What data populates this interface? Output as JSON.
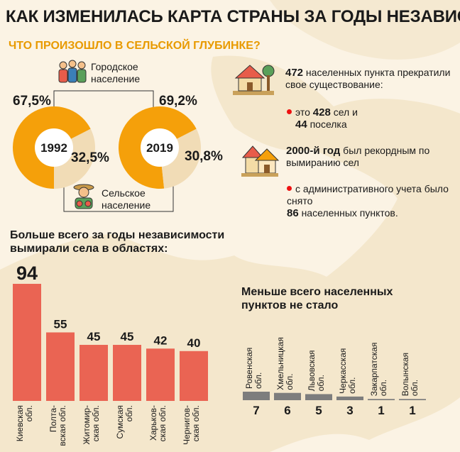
{
  "title": "КАК ИЗМЕНИЛАСЬ КАРТА СТРАНЫ ЗА ГОДЫ НЕЗАВИС",
  "subtitle": "ЧТО ПРОИЗОШЛО В СЕЛЬСКОЙ ГЛУБИНКЕ?",
  "legend": {
    "urban": "Городское\nнаселение",
    "rural": "Сельское\nнаселение"
  },
  "colors": {
    "urban": "#f5a00a",
    "rural": "#f1dcb6",
    "bar": "#ea6453",
    "bar_small": "#7d7d7d",
    "accent": "#e89a00"
  },
  "chart_data": [
    {
      "type": "pie",
      "title": "1992",
      "labels": [
        "Городское население",
        "Сельское население"
      ],
      "values": [
        67.5,
        32.5
      ],
      "value_labels": [
        "67,5%",
        "32,5%"
      ]
    },
    {
      "type": "pie",
      "title": "2019",
      "labels": [
        "Городское население",
        "Сельское население"
      ],
      "values": [
        69.2,
        30.8
      ],
      "value_labels": [
        "69,2%",
        "30,8%"
      ]
    },
    {
      "type": "bar",
      "title": "Больше всего за годы независимости вымирали села в областях:",
      "categories": [
        "Киевская обл.",
        "Полтавская обл.",
        "Житомирская обл.",
        "Сумская обл.",
        "Харьковская обл.",
        "Черниговская обл."
      ],
      "category_labels": [
        "Киевская\nобл.",
        "Полта-\nвская обл.",
        "Житомир-\nская обл.",
        "Сумская\nобл.",
        "Харьков-\nская обл.",
        "Чернигов-\nская обл."
      ],
      "values": [
        94,
        55,
        45,
        45,
        42,
        40
      ]
    },
    {
      "type": "bar",
      "title": "Меньше всего населенных пунктов не стало",
      "categories": [
        "Ровенская обл.",
        "Хмельницкая обл.",
        "Львовская обл.",
        "Черкасская обл.",
        "Закарпатская обл.",
        "Волынская обл."
      ],
      "category_labels": [
        "Ровенская\nобл.",
        "Хмельницкая\nобл.",
        "Львовская\nобл.",
        "Черкасская\nобл.",
        "Закарпатская\nобл.",
        "Волынская\nобл."
      ],
      "values": [
        7,
        6,
        5,
        3,
        1,
        1
      ]
    }
  ],
  "facts": [
    {
      "strong": "472",
      "text": " населенных пункта прекратили свое существование:"
    },
    {
      "bullet": true,
      "text": "это ",
      "strong": "428",
      "text2": " сел и",
      "strong2": "44",
      "text3": " поселка"
    },
    {
      "strong": "2000-й год",
      "text": " был рекордным по вымиранию сел"
    },
    {
      "bullet": true,
      "text": "с административного учета было снято",
      "strong": "86",
      "text2": " населенных пунктов."
    }
  ],
  "icons": [
    "urban-people-icon",
    "farmer-icon",
    "village-house-icon",
    "houses-icon"
  ]
}
